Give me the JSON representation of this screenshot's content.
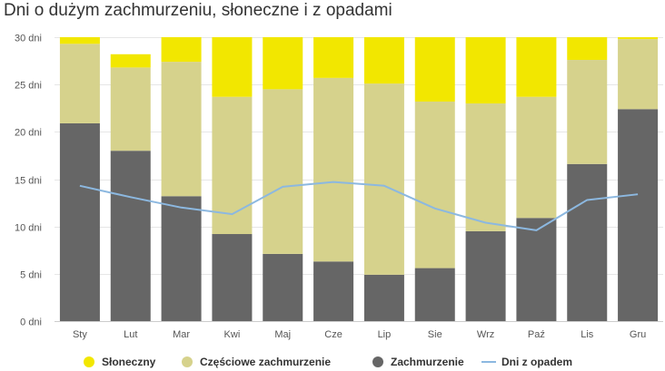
{
  "chart_data": {
    "type": "bar",
    "title": "Dni o dużym zachmurzeniu, słoneczne i z opadami",
    "unit": "dni",
    "categories": [
      "Sty",
      "Lut",
      "Mar",
      "Kwi",
      "Maj",
      "Cze",
      "Lip",
      "Sie",
      "Wrz",
      "Paź",
      "Lis",
      "Gru"
    ],
    "ylim": [
      0,
      30
    ],
    "yticks": [
      0,
      5,
      10,
      15,
      20,
      25,
      30
    ],
    "ytick_labels": [
      "0 dni",
      "5 dni",
      "10 dni",
      "15 dni",
      "20 dni",
      "25 dni",
      "30 dni"
    ],
    "stacked": true,
    "grid": true,
    "legend_position": "bottom",
    "series": [
      {
        "name": "Zachmurzenie",
        "kind": "bar",
        "color": "#666666",
        "values": [
          20.9,
          18.0,
          13.2,
          9.2,
          7.1,
          6.3,
          4.9,
          5.6,
          9.5,
          10.9,
          16.6,
          22.4
        ]
      },
      {
        "name": "Częściowe zachmurzenie",
        "kind": "bar",
        "color": "#d6d28c",
        "values": [
          8.4,
          8.8,
          14.2,
          14.5,
          17.4,
          19.4,
          20.2,
          17.6,
          13.5,
          12.8,
          11.0,
          7.4
        ]
      },
      {
        "name": "Słoneczny",
        "kind": "bar",
        "color": "#f2e700",
        "values": [
          0.7,
          1.4,
          2.6,
          6.3,
          5.5,
          4.3,
          4.9,
          6.8,
          7.0,
          6.3,
          2.4,
          0.2
        ]
      },
      {
        "name": "Dni z opadem",
        "kind": "line",
        "color": "#8cb8e0",
        "values": [
          14.3,
          13.1,
          12.0,
          11.3,
          14.2,
          14.7,
          14.3,
          11.9,
          10.4,
          9.6,
          12.8,
          13.4
        ]
      }
    ]
  }
}
